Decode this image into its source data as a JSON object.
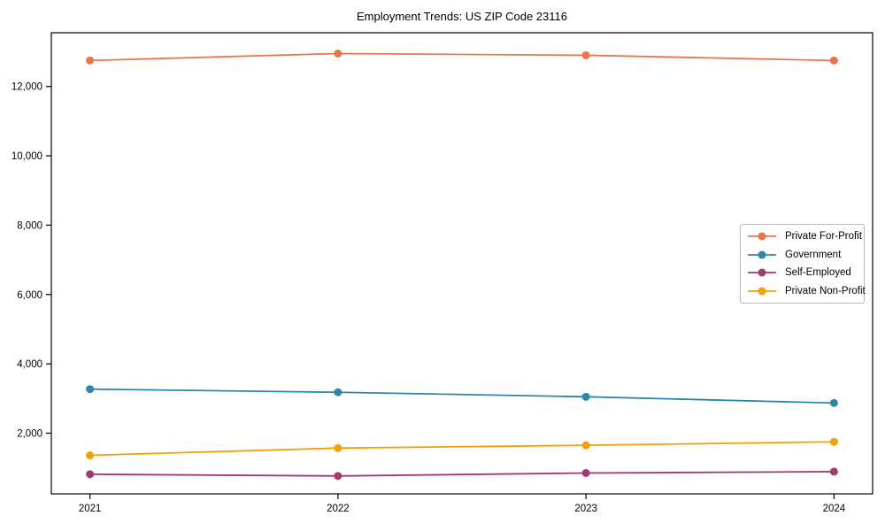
{
  "page": {
    "background_color": "#ffffff",
    "axis_color": "#000000",
    "text_color": "#000000",
    "legend_border_color": "#b7b7b7"
  },
  "chart_data": {
    "type": "line",
    "title": "Employment Trends: US ZIP Code 23116",
    "xlabel": "",
    "ylabel": "",
    "x_labels": [
      "2021",
      "2022",
      "2023",
      "2024"
    ],
    "series": [
      {
        "name": "Private For-Profit",
        "color": "#E8764B",
        "values": [
          12750,
          12950,
          12900,
          12750
        ]
      },
      {
        "name": "Government",
        "color": "#2E86AB",
        "values": [
          3270,
          3180,
          3050,
          2870
        ]
      },
      {
        "name": "Self-Employed",
        "color": "#A23B72",
        "values": [
          815,
          765,
          850,
          890
        ]
      },
      {
        "name": "Private Non-Profit",
        "color": "#F0A202",
        "values": [
          1360,
          1570,
          1650,
          1750
        ]
      }
    ],
    "yticks": [
      2000,
      4000,
      6000,
      8000,
      10000,
      12000
    ],
    "ylim": [
      250,
      13550
    ],
    "grid": false,
    "marker": "circle",
    "legend_position": "center-right"
  }
}
